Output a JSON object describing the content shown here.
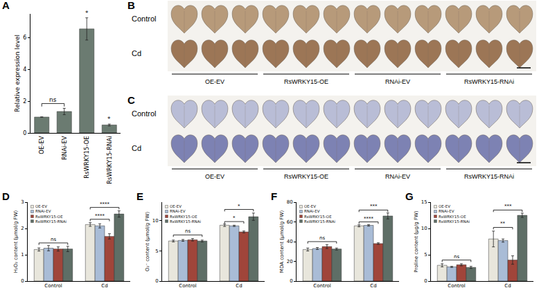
{
  "chart_data": [
    {
      "panel": "A",
      "type": "bar",
      "categories": [
        "OE-EV",
        "RNAi-EV",
        "RsWRKY15-OE",
        "RsWRKY15-RNAi"
      ],
      "values": [
        1.0,
        1.35,
        6.55,
        0.5
      ],
      "errors": [
        0,
        0.2,
        0.7,
        0.06
      ],
      "color": "#6b7b71",
      "y_label": "Relative expression level",
      "ylim": [
        0,
        7.5
      ],
      "yticks": [
        0,
        2,
        4,
        6
      ],
      "grid": false,
      "brackets": [
        {
          "text": "ns",
          "from": "OE-EV",
          "to": "RNAi-EV",
          "y": 1.85
        },
        {
          "text": "*",
          "from": "RsWRKY15-OE",
          "to": "RsWRKY15-OE",
          "y": 7.3
        },
        {
          "text": "*",
          "from": "RsWRKY15-RNAi",
          "to": "RsWRKY15-RNAi",
          "y": 0.62
        }
      ]
    },
    {
      "panel": "D",
      "type": "bar",
      "categories": [
        "Control",
        "Cd"
      ],
      "series": [
        {
          "name": "OE-EV",
          "color": "#e8e6dc",
          "values": [
            1.2,
            2.15
          ],
          "errors": [
            0.06,
            0.07
          ]
        },
        {
          "name": "RNAi-EV",
          "color": "#a9bcd6",
          "values": [
            1.25,
            2.1
          ],
          "errors": [
            0.1,
            0.08
          ]
        },
        {
          "name": "RsWRKY15-OE",
          "color": "#a0453a",
          "values": [
            1.22,
            1.7
          ],
          "errors": [
            0.08,
            0.1
          ]
        },
        {
          "name": "RsWRKY15-RNAi",
          "color": "#5e6e66",
          "values": [
            1.22,
            2.55
          ],
          "errors": [
            0.1,
            0.12
          ]
        }
      ],
      "y_label": "H₂O₂ content (μmol/g FW)",
      "ylim": [
        0,
        3
      ],
      "yticks": [
        0,
        1,
        2,
        3
      ],
      "grid": false,
      "legend": "upper left",
      "brackets": [
        {
          "text": "ns",
          "group": "Control",
          "from": "OE-EV",
          "to": "RsWRKY15-RNAi",
          "y": 1.45
        },
        {
          "text": "****",
          "group": "Cd",
          "from": "OE-EV",
          "to": "RsWRKY15-OE",
          "y": 2.35
        },
        {
          "text": "****",
          "group": "Cd",
          "from": "OE-EV",
          "to": "RsWRKY15-RNAi",
          "y": 2.8
        }
      ]
    },
    {
      "panel": "E",
      "type": "bar",
      "categories": [
        "Control",
        "Cd"
      ],
      "series": [
        {
          "name": "OE-EV",
          "color": "#e8e6dc",
          "values": [
            6.6,
            9.2
          ],
          "errors": [
            0.15,
            0.2
          ]
        },
        {
          "name": "RNAi-EV",
          "color": "#a9bcd6",
          "values": [
            6.7,
            9.1
          ],
          "errors": [
            0.15,
            0.1
          ]
        },
        {
          "name": "RsWRKY15-OE",
          "color": "#a0453a",
          "values": [
            6.8,
            8.1
          ],
          "errors": [
            0.2,
            0.15
          ]
        },
        {
          "name": "RsWRKY15-RNAi",
          "color": "#5e6e66",
          "values": [
            6.6,
            10.6
          ],
          "errors": [
            0.15,
            0.6
          ]
        }
      ],
      "y_label": "O₂⁻ content (μmol/g FW)",
      "ylim": [
        0,
        13
      ],
      "yticks": [
        0,
        5,
        10
      ],
      "grid": false,
      "legend": "upper left",
      "brackets": [
        {
          "text": "ns",
          "group": "Control",
          "from": "OE-EV",
          "to": "RsWRKY15-RNAi",
          "y": 7.6
        },
        {
          "text": "*",
          "group": "Cd",
          "from": "OE-EV",
          "to": "RsWRKY15-OE",
          "y": 9.8
        },
        {
          "text": "*",
          "group": "Cd",
          "from": "OE-EV",
          "to": "RsWRKY15-RNAi",
          "y": 11.8
        }
      ]
    },
    {
      "panel": "F",
      "type": "bar",
      "categories": [
        "Control",
        "Cd"
      ],
      "series": [
        {
          "name": "OE-EV",
          "color": "#e8e6dc",
          "values": [
            32,
            56
          ],
          "errors": [
            1.5,
            1
          ]
        },
        {
          "name": "RNAi-EV",
          "color": "#a9bcd6",
          "values": [
            33,
            56.5
          ],
          "errors": [
            1,
            0.8
          ]
        },
        {
          "name": "RsWRKY15-OE",
          "color": "#a0453a",
          "values": [
            35,
            38
          ],
          "errors": [
            2,
            0.8
          ]
        },
        {
          "name": "RsWRKY15-RNAi",
          "color": "#5e6e66",
          "values": [
            32.5,
            66
          ],
          "errors": [
            1,
            3
          ]
        }
      ],
      "y_label": "MDA content (μmol/g FW)",
      "ylim": [
        0,
        80
      ],
      "yticks": [
        0,
        20,
        40,
        60,
        80
      ],
      "grid": false,
      "legend": "upper left",
      "brackets": [
        {
          "text": "ns",
          "group": "Control",
          "from": "OE-EV",
          "to": "RsWRKY15-RNAi",
          "y": 40
        },
        {
          "text": "****",
          "group": "Cd",
          "from": "OE-EV",
          "to": "RsWRKY15-OE",
          "y": 60
        },
        {
          "text": "***",
          "group": "Cd",
          "from": "OE-EV",
          "to": "RsWRKY15-RNAi",
          "y": 72
        }
      ]
    },
    {
      "panel": "G",
      "type": "bar",
      "categories": [
        "Control",
        "Cd"
      ],
      "series": [
        {
          "name": "OE-EV",
          "color": "#e8e6dc",
          "values": [
            3,
            8
          ],
          "errors": [
            0.3,
            1.5
          ]
        },
        {
          "name": "RNAi-EV",
          "color": "#a9bcd6",
          "values": [
            2.7,
            7.7
          ],
          "errors": [
            0.1,
            0.3
          ]
        },
        {
          "name": "RsWRKY15-OE",
          "color": "#a0453a",
          "values": [
            3.1,
            4
          ],
          "errors": [
            0.2,
            0.8
          ]
        },
        {
          "name": "RsWRKY15-RNAi",
          "color": "#5e6e66",
          "values": [
            2.6,
            12.5
          ],
          "errors": [
            0.2,
            0.4
          ]
        }
      ],
      "y_label": "Proline content (μg/g FW)",
      "ylim": [
        0,
        15
      ],
      "yticks": [
        0,
        5,
        10,
        15
      ],
      "grid": false,
      "legend": "upper left",
      "brackets": [
        {
          "text": "ns",
          "group": "Control",
          "from": "OE-EV",
          "to": "RsWRKY15-RNAi",
          "y": 4
        },
        {
          "text": "**",
          "group": "Cd",
          "from": "OE-EV",
          "to": "RsWRKY15-OE",
          "y": 10.2
        },
        {
          "text": "***",
          "group": "Cd",
          "from": "OE-EV",
          "to": "RsWRKY15-RNAi",
          "y": 13.5
        }
      ]
    }
  ],
  "image_panels": [
    {
      "panel": "B",
      "rows": [
        "Control",
        "Cd"
      ],
      "groups": [
        "OE-EV",
        "RsWRKY15-OE",
        "RNAi-EV",
        "RsWRKY15-RNAi"
      ],
      "leaves_per_group": 3,
      "colors": [
        "#b79a7a",
        "#9c7656"
      ]
    },
    {
      "panel": "C",
      "rows": [
        "Control",
        "Cd"
      ],
      "groups": [
        "OE-EV",
        "RsWRKY15-OE",
        "RNAi-EV",
        "RsWRKY15-RNAi"
      ],
      "leaves_per_group": 3,
      "colors": [
        "#b9bdd6",
        "#7d82b3"
      ]
    }
  ]
}
